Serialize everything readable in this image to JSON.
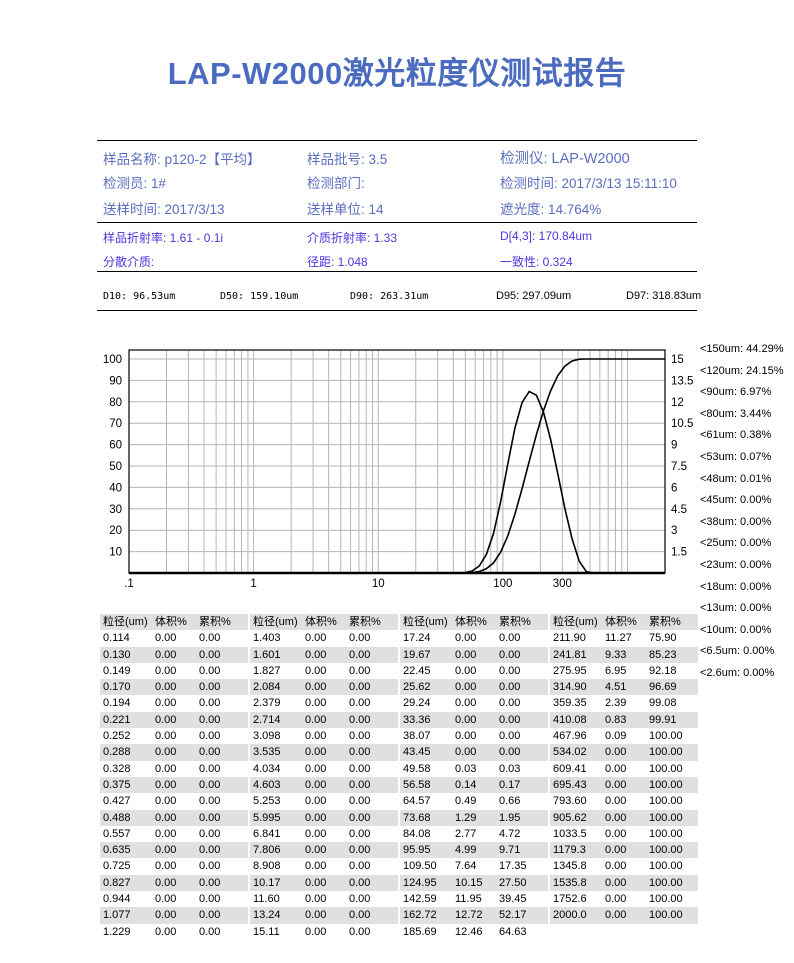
{
  "title": "LAP-W2000激光粒度仪测试报告",
  "info": {
    "sample_name": "样品名称:  p120-2【平均】",
    "batch": "样品批号:  3.5",
    "instrument": "检测仪:  LAP-W2000",
    "operator": "检测员:  1#",
    "department": "检测部门:",
    "test_time": "检测时间:  2017/3/13 15:11:10",
    "send_time": "送样时间:  2017/3/13",
    "send_unit": "送样单位:  14",
    "obscuration": "遮光度:  14.764%",
    "sample_ri": "样品折射率:  1.61 - 0.1i",
    "medium_ri": "介质折射率:  1.33",
    "d43": "D[4,3]:  170.84um",
    "dispersant": "分散介质:",
    "span": "径距:  1.048",
    "uniformity": "一致性:  0.324"
  },
  "d_values": {
    "d10": "D10: 96.53um",
    "d50": "D50: 159.10um",
    "d90": "D90: 263.31um",
    "d95": "D95: 297.09um",
    "d97": "D97: 318.83um"
  },
  "chart_data": {
    "type": "line",
    "x_scale": "log",
    "xlim": [
      0.1,
      2000
    ],
    "x_ticks": [
      ".1",
      "1",
      "10",
      "100",
      "300"
    ],
    "x_tick_values": [
      0.1,
      1,
      10,
      100,
      300
    ],
    "left_ylim": [
      0,
      100
    ],
    "left_ticks": [
      "10",
      "20",
      "30",
      "40",
      "50",
      "60",
      "70",
      "80",
      "90",
      "100"
    ],
    "right_ylim": [
      0,
      15
    ],
    "right_ticks": [
      "1.5",
      "3",
      "4.5",
      "6",
      "7.5",
      "9",
      "10.5",
      "12",
      "13.5",
      "15"
    ],
    "grid": true,
    "line_color": "#000000",
    "grid_color": "#b4b4b4"
  },
  "legend": [
    "<150um:  44.29%",
    "<120um:  24.15%",
    "<90um:  6.97%",
    "<80um:  3.44%",
    "<61um:  0.38%",
    "<53um:  0.07%",
    "<48um:  0.01%",
    "<45um:  0.00%",
    "<38um:  0.00%",
    "<25um:  0.00%",
    "<23um:  0.00%",
    "<18um:  0.00%",
    "<13um:  0.00%",
    "<10um:  0.00%",
    "<6.5um:  0.00%",
    "<2.6um:  0.00%"
  ],
  "table": {
    "headers": [
      "粒径(um)",
      "体积%",
      "累积%"
    ],
    "rows": [
      [
        "0.114",
        "0.00",
        "0.00"
      ],
      [
        "0.130",
        "0.00",
        "0.00"
      ],
      [
        "0.149",
        "0.00",
        "0.00"
      ],
      [
        "0.170",
        "0.00",
        "0.00"
      ],
      [
        "0.194",
        "0.00",
        "0.00"
      ],
      [
        "0.221",
        "0.00",
        "0.00"
      ],
      [
        "0.252",
        "0.00",
        "0.00"
      ],
      [
        "0.288",
        "0.00",
        "0.00"
      ],
      [
        "0.328",
        "0.00",
        "0.00"
      ],
      [
        "0.375",
        "0.00",
        "0.00"
      ],
      [
        "0.427",
        "0.00",
        "0.00"
      ],
      [
        "0.488",
        "0.00",
        "0.00"
      ],
      [
        "0.557",
        "0.00",
        "0.00"
      ],
      [
        "0.635",
        "0.00",
        "0.00"
      ],
      [
        "0.725",
        "0.00",
        "0.00"
      ],
      [
        "0.827",
        "0.00",
        "0.00"
      ],
      [
        "0.944",
        "0.00",
        "0.00"
      ],
      [
        "1.077",
        "0.00",
        "0.00"
      ],
      [
        "1.229",
        "0.00",
        "0.00"
      ],
      [
        "1.403",
        "0.00",
        "0.00"
      ],
      [
        "1.601",
        "0.00",
        "0.00"
      ],
      [
        "1.827",
        "0.00",
        "0.00"
      ],
      [
        "2.084",
        "0.00",
        "0.00"
      ],
      [
        "2.379",
        "0.00",
        "0.00"
      ],
      [
        "2.714",
        "0.00",
        "0.00"
      ],
      [
        "3.098",
        "0.00",
        "0.00"
      ],
      [
        "3.535",
        "0.00",
        "0.00"
      ],
      [
        "4.034",
        "0.00",
        "0.00"
      ],
      [
        "4.603",
        "0.00",
        "0.00"
      ],
      [
        "5.253",
        "0.00",
        "0.00"
      ],
      [
        "5.995",
        "0.00",
        "0.00"
      ],
      [
        "6.841",
        "0.00",
        "0.00"
      ],
      [
        "7.806",
        "0.00",
        "0.00"
      ],
      [
        "8.908",
        "0.00",
        "0.00"
      ],
      [
        "10.17",
        "0.00",
        "0.00"
      ],
      [
        "11.60",
        "0.00",
        "0.00"
      ],
      [
        "13.24",
        "0.00",
        "0.00"
      ],
      [
        "15.11",
        "0.00",
        "0.00"
      ],
      [
        "17.24",
        "0.00",
        "0.00"
      ],
      [
        "19.67",
        "0.00",
        "0.00"
      ],
      [
        "22.45",
        "0.00",
        "0.00"
      ],
      [
        "25.62",
        "0.00",
        "0.00"
      ],
      [
        "29.24",
        "0.00",
        "0.00"
      ],
      [
        "33.36",
        "0.00",
        "0.00"
      ],
      [
        "38.07",
        "0.00",
        "0.00"
      ],
      [
        "43.45",
        "0.00",
        "0.00"
      ],
      [
        "49.58",
        "0.03",
        "0.03"
      ],
      [
        "56.58",
        "0.14",
        "0.17"
      ],
      [
        "64.57",
        "0.49",
        "0.66"
      ],
      [
        "73.68",
        "1.29",
        "1.95"
      ],
      [
        "84.08",
        "2.77",
        "4.72"
      ],
      [
        "95.95",
        "4.99",
        "9.71"
      ],
      [
        "109.50",
        "7.64",
        "17.35"
      ],
      [
        "124.95",
        "10.15",
        "27.50"
      ],
      [
        "142.59",
        "11.95",
        "39.45"
      ],
      [
        "162.72",
        "12.72",
        "52.17"
      ],
      [
        "185.69",
        "12.46",
        "64.63"
      ],
      [
        "211.90",
        "11.27",
        "75.90"
      ],
      [
        "241.81",
        "9.33",
        "85.23"
      ],
      [
        "275.95",
        "6.95",
        "92.18"
      ],
      [
        "314.90",
        "4.51",
        "96.69"
      ],
      [
        "359.35",
        "2.39",
        "99.08"
      ],
      [
        "410.08",
        "0.83",
        "99.91"
      ],
      [
        "467.96",
        "0.09",
        "100.00"
      ],
      [
        "534.02",
        "0.00",
        "100.00"
      ],
      [
        "609.41",
        "0.00",
        "100.00"
      ],
      [
        "695.43",
        "0.00",
        "100.00"
      ],
      [
        "793.60",
        "0.00",
        "100.00"
      ],
      [
        "905.62",
        "0.00",
        "100.00"
      ],
      [
        "1033.5",
        "0.00",
        "100.00"
      ],
      [
        "1179.3",
        "0.00",
        "100.00"
      ],
      [
        "1345.8",
        "0.00",
        "100.00"
      ],
      [
        "1535.8",
        "0.00",
        "100.00"
      ],
      [
        "1752.6",
        "0.00",
        "100.00"
      ],
      [
        "2000.0",
        "0.00",
        "100.00"
      ]
    ]
  }
}
